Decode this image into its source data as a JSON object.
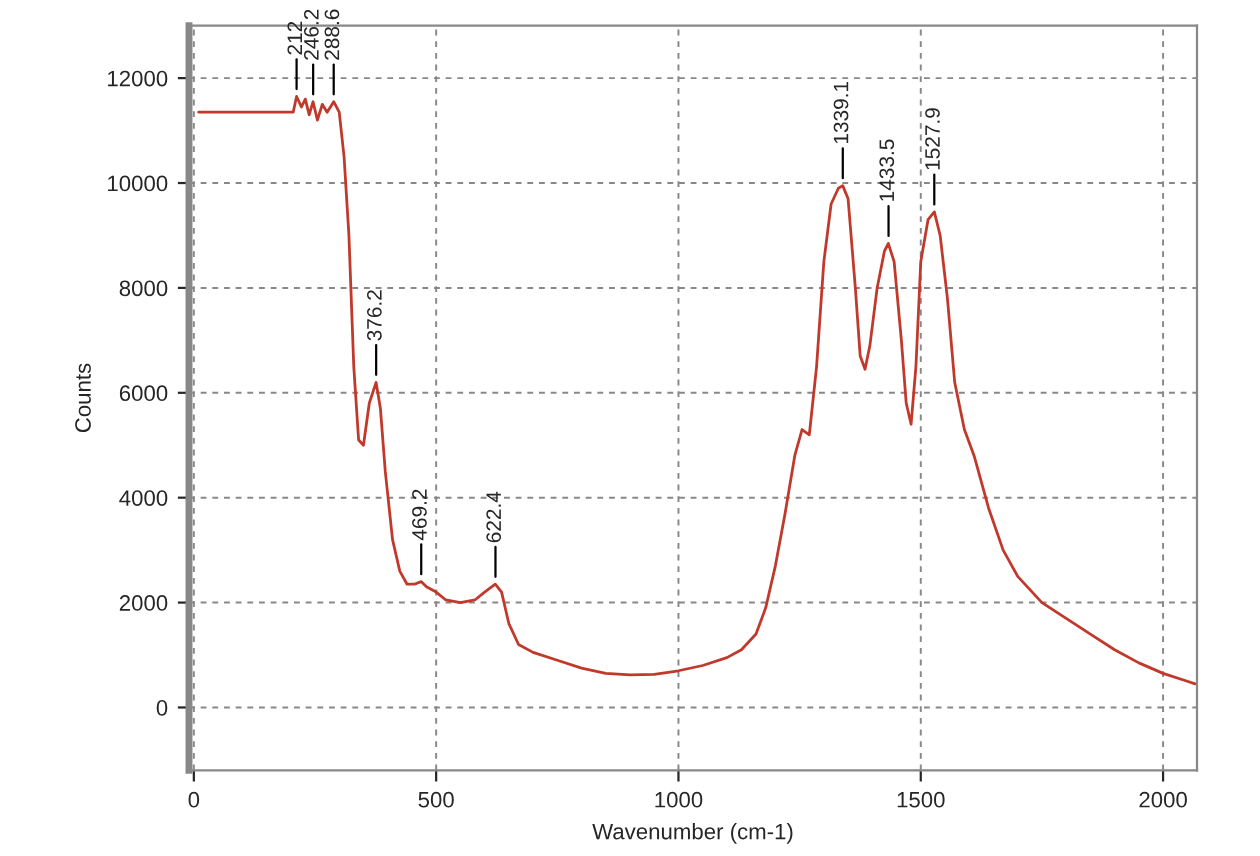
{
  "chart_data": {
    "type": "line",
    "xlabel": "Wavenumber (cm-1)",
    "ylabel": "Counts",
    "xlim": [
      -10,
      2070
    ],
    "ylim": [
      -1200,
      13000
    ],
    "xticks": [
      0,
      500,
      1000,
      1500,
      2000
    ],
    "yticks": [
      0,
      2000,
      4000,
      6000,
      8000,
      10000,
      12000
    ],
    "grid": true,
    "line_style": "solid",
    "marker": "none",
    "series": [
      {
        "color": "#c0392b",
        "x": [
          10,
          205,
          212,
          222,
          230,
          238,
          246,
          255,
          265,
          275,
          288.6,
          300,
          310,
          320,
          330,
          340,
          350,
          362,
          376,
          385,
          395,
          410,
          425,
          440,
          455,
          469,
          480,
          500,
          520,
          550,
          580,
          600,
          622,
          635,
          650,
          670,
          700,
          750,
          800,
          850,
          900,
          950,
          1000,
          1050,
          1100,
          1130,
          1160,
          1180,
          1200,
          1220,
          1240,
          1255,
          1270,
          1285,
          1300,
          1315,
          1330,
          1339,
          1350,
          1365,
          1375,
          1385,
          1395,
          1410,
          1425,
          1433,
          1445,
          1460,
          1470,
          1480,
          1490,
          1500,
          1515,
          1528,
          1540,
          1555,
          1570,
          1590,
          1610,
          1640,
          1670,
          1700,
          1750,
          1800,
          1850,
          1900,
          1950,
          2000,
          2050,
          2066
        ],
        "values": [
          11350,
          11350,
          11650,
          11450,
          11600,
          11300,
          11550,
          11200,
          11500,
          11350,
          11550,
          11350,
          10500,
          9000,
          6500,
          5100,
          5000,
          5800,
          6200,
          5700,
          4500,
          3200,
          2600,
          2350,
          2350,
          2400,
          2300,
          2200,
          2050,
          2000,
          2050,
          2200,
          2350,
          2200,
          1600,
          1200,
          1050,
          900,
          750,
          650,
          620,
          630,
          700,
          800,
          950,
          1100,
          1400,
          1900,
          2700,
          3700,
          4800,
          5300,
          5200,
          6500,
          8500,
          9600,
          9900,
          9950,
          9700,
          8000,
          6700,
          6450,
          6900,
          8000,
          8700,
          8850,
          8500,
          7000,
          5800,
          5400,
          6500,
          8500,
          9300,
          9450,
          9000,
          7800,
          6200,
          5300,
          4800,
          3800,
          3000,
          2500,
          2000,
          1700,
          1400,
          1100,
          850,
          650,
          500,
          450
        ]
      }
    ],
    "annotations": [
      {
        "text": "212",
        "x": 212,
        "y": 11650
      },
      {
        "text": "246.2",
        "x": 246.2,
        "y": 11550
      },
      {
        "text": "288.6",
        "x": 288.6,
        "y": 11550
      },
      {
        "text": "376.2",
        "x": 376.2,
        "y": 6200
      },
      {
        "text": "469.2",
        "x": 469.2,
        "y": 2400
      },
      {
        "text": "622.4",
        "x": 622.4,
        "y": 2350
      },
      {
        "text": "1339.1",
        "x": 1339.1,
        "y": 9950
      },
      {
        "text": "1433.5",
        "x": 1433.5,
        "y": 8850
      },
      {
        "text": "1527.9",
        "x": 1527.9,
        "y": 9450
      }
    ]
  }
}
